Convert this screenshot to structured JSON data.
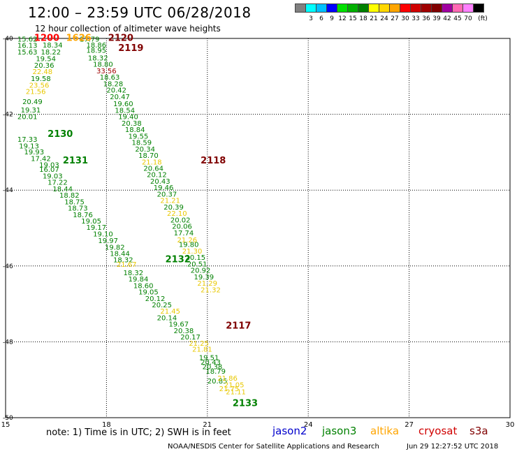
{
  "title": "12:00  –  23:59  UTC  06/28/2018",
  "subtitle": "12 hour collection of altimeter wave heights",
  "legend": {
    "unit": "(ft)",
    "colors": [
      "#808080",
      "#00ffff",
      "#00bfff",
      "#0000ff",
      "#00e000",
      "#00b000",
      "#008000",
      "#ffff00",
      "#ffd700",
      "#ffa500",
      "#ff0000",
      "#d00000",
      "#a00000",
      "#800000",
      "#a000a0",
      "#ff69b4",
      "#ff80ff",
      "#000000"
    ],
    "labels": [
      "3",
      "6",
      "9",
      "12",
      "15",
      "18",
      "21",
      "24",
      "27",
      "30",
      "33",
      "36",
      "39",
      "42",
      "45",
      "70"
    ]
  },
  "axes": {
    "x_ticks": [
      "15",
      "18",
      "21",
      "24",
      "27",
      "30"
    ],
    "y_ticks": [
      "-40",
      "-42",
      "-44",
      "-46",
      "-48",
      "-50"
    ]
  },
  "readings": [
    {
      "lon": 15.35,
      "lat": -40.08,
      "text": "15.62",
      "color": "#008000"
    },
    {
      "lon": 15.35,
      "lat": -40.25,
      "text": "16.13",
      "color": "#008000"
    },
    {
      "lon": 15.35,
      "lat": -40.42,
      "text": "15.63",
      "color": "#008000"
    },
    {
      "lon": 16.1,
      "lat": -40.24,
      "text": "18.34",
      "color": "#008000"
    },
    {
      "lon": 16.05,
      "lat": -40.42,
      "text": "18.22",
      "color": "#008000"
    },
    {
      "lon": 15.9,
      "lat": -40.6,
      "text": "19.54",
      "color": "#008000"
    },
    {
      "lon": 15.85,
      "lat": -40.77,
      "text": "20.36",
      "color": "#008000"
    },
    {
      "lon": 15.8,
      "lat": -40.94,
      "text": "22.48",
      "color": "#e8c800"
    },
    {
      "lon": 15.75,
      "lat": -41.12,
      "text": "19.58",
      "color": "#008000"
    },
    {
      "lon": 15.7,
      "lat": -41.3,
      "text": "23.56",
      "color": "#e8c800"
    },
    {
      "lon": 15.6,
      "lat": -41.46,
      "text": "21.56",
      "color": "#e8c800"
    },
    {
      "lon": 15.5,
      "lat": -41.73,
      "text": "20.49",
      "color": "#008000"
    },
    {
      "lon": 15.45,
      "lat": -41.95,
      "text": "19.31",
      "color": "#008000"
    },
    {
      "lon": 15.35,
      "lat": -42.13,
      "text": "20.01",
      "color": "#008000"
    },
    {
      "lon": 15.35,
      "lat": -42.73,
      "text": "17.33",
      "color": "#008000"
    },
    {
      "lon": 15.4,
      "lat": -42.9,
      "text": "19.13",
      "color": "#008000"
    },
    {
      "lon": 15.55,
      "lat": -43.06,
      "text": "19.93",
      "color": "#008000"
    },
    {
      "lon": 15.75,
      "lat": -43.23,
      "text": "17.42",
      "color": "#008000"
    },
    {
      "lon": 16.0,
      "lat": -43.4,
      "text": "19.03",
      "color": "#008000"
    },
    {
      "lon": 16.0,
      "lat": -43.52,
      "text": "16.07",
      "color": "#008000"
    },
    {
      "lon": 16.1,
      "lat": -43.69,
      "text": "19.03",
      "color": "#008000"
    },
    {
      "lon": 16.25,
      "lat": -43.86,
      "text": "17.22",
      "color": "#008000"
    },
    {
      "lon": 16.4,
      "lat": -44.03,
      "text": "18.44",
      "color": "#008000"
    },
    {
      "lon": 16.6,
      "lat": -44.2,
      "text": "18.82",
      "color": "#008000"
    },
    {
      "lon": 16.75,
      "lat": -44.37,
      "text": "18.75",
      "color": "#008000"
    },
    {
      "lon": 16.85,
      "lat": -44.54,
      "text": "18.73",
      "color": "#008000"
    },
    {
      "lon": 17.0,
      "lat": -44.71,
      "text": "18.76",
      "color": "#008000"
    },
    {
      "lon": 17.25,
      "lat": -44.88,
      "text": "19.05",
      "color": "#008000"
    },
    {
      "lon": 17.4,
      "lat": -45.05,
      "text": "19.17",
      "color": "#008000"
    },
    {
      "lon": 17.6,
      "lat": -45.22,
      "text": "19.10",
      "color": "#008000"
    },
    {
      "lon": 17.75,
      "lat": -45.4,
      "text": "19.97",
      "color": "#008000"
    },
    {
      "lon": 17.95,
      "lat": -45.57,
      "text": "19.82",
      "color": "#008000"
    },
    {
      "lon": 18.1,
      "lat": -45.74,
      "text": "18.44",
      "color": "#008000"
    },
    {
      "lon": 18.2,
      "lat": -45.9,
      "text": "18.32",
      "color": "#008000"
    },
    {
      "lon": 18.3,
      "lat": -46.02,
      "text": "21.67",
      "color": "#e8c800"
    },
    {
      "lon": 18.5,
      "lat": -46.24,
      "text": "18.32",
      "color": "#008000"
    },
    {
      "lon": 18.65,
      "lat": -46.41,
      "text": "19.84",
      "color": "#008000"
    },
    {
      "lon": 18.8,
      "lat": -46.58,
      "text": "18.60",
      "color": "#008000"
    },
    {
      "lon": 18.95,
      "lat": -46.75,
      "text": "19.05",
      "color": "#008000"
    },
    {
      "lon": 19.15,
      "lat": -46.92,
      "text": "20.12",
      "color": "#008000"
    },
    {
      "lon": 19.35,
      "lat": -47.09,
      "text": "20.25",
      "color": "#008000"
    },
    {
      "lon": 19.6,
      "lat": -47.26,
      "text": "21.45",
      "color": "#e8c800"
    },
    {
      "lon": 19.5,
      "lat": -47.43,
      "text": "20.14",
      "color": "#008000"
    },
    {
      "lon": 19.85,
      "lat": -47.6,
      "text": "19.67",
      "color": "#008000"
    },
    {
      "lon": 20.0,
      "lat": -47.77,
      "text": "20.38",
      "color": "#008000"
    },
    {
      "lon": 20.2,
      "lat": -47.94,
      "text": "20.17",
      "color": "#008000"
    },
    {
      "lon": 20.45,
      "lat": -48.1,
      "text": "21.25",
      "color": "#e8c800"
    },
    {
      "lon": 20.55,
      "lat": -48.26,
      "text": "21.81",
      "color": "#e8c800"
    },
    {
      "lon": 20.75,
      "lat": -48.48,
      "text": "19.51",
      "color": "#008000"
    },
    {
      "lon": 20.8,
      "lat": -48.6,
      "text": "20.43",
      "color": "#008000"
    },
    {
      "lon": 20.85,
      "lat": -48.72,
      "text": "20.38",
      "color": "#008000"
    },
    {
      "lon": 20.95,
      "lat": -48.84,
      "text": "18.79",
      "color": "#008000"
    },
    {
      "lon": 17.2,
      "lat": -40.08,
      "text": "17.79",
      "color": "#008000"
    },
    {
      "lon": 17.4,
      "lat": -40.24,
      "text": "18.86",
      "color": "#008000"
    },
    {
      "lon": 17.4,
      "lat": -40.38,
      "text": "18.95",
      "color": "#008000"
    },
    {
      "lon": 17.45,
      "lat": -40.58,
      "text": "18.32",
      "color": "#008000"
    },
    {
      "lon": 17.6,
      "lat": -40.75,
      "text": "18.80",
      "color": "#008000"
    },
    {
      "lon": 17.7,
      "lat": -40.92,
      "text": "33.56",
      "color": "#a00000"
    },
    {
      "lon": 17.8,
      "lat": -41.09,
      "text": "18.63",
      "color": "#008000"
    },
    {
      "lon": 17.9,
      "lat": -41.26,
      "text": "18.28",
      "color": "#008000"
    },
    {
      "lon": 18.0,
      "lat": -41.43,
      "text": "20.42",
      "color": "#008000"
    },
    {
      "lon": 18.1,
      "lat": -41.6,
      "text": "20.47",
      "color": "#008000"
    },
    {
      "lon": 18.2,
      "lat": -41.79,
      "text": "19.60",
      "color": "#008000"
    },
    {
      "lon": 18.25,
      "lat": -41.96,
      "text": "18.54",
      "color": "#008000"
    },
    {
      "lon": 18.35,
      "lat": -42.13,
      "text": "19.40",
      "color": "#008000"
    },
    {
      "lon": 18.45,
      "lat": -42.3,
      "text": "20.38",
      "color": "#008000"
    },
    {
      "lon": 18.55,
      "lat": -42.47,
      "text": "18.84",
      "color": "#008000"
    },
    {
      "lon": 18.65,
      "lat": -42.64,
      "text": "19.55",
      "color": "#008000"
    },
    {
      "lon": 18.75,
      "lat": -42.81,
      "text": "18.59",
      "color": "#008000"
    },
    {
      "lon": 18.85,
      "lat": -42.98,
      "text": "20.34",
      "color": "#008000"
    },
    {
      "lon": 18.95,
      "lat": -43.15,
      "text": "18.70",
      "color": "#008000"
    },
    {
      "lon": 19.05,
      "lat": -43.32,
      "text": "21.18",
      "color": "#e8c800"
    },
    {
      "lon": 19.1,
      "lat": -43.49,
      "text": "20.64",
      "color": "#008000"
    },
    {
      "lon": 19.2,
      "lat": -43.66,
      "text": "20.12",
      "color": "#008000"
    },
    {
      "lon": 19.3,
      "lat": -43.83,
      "text": "20.43",
      "color": "#008000"
    },
    {
      "lon": 19.4,
      "lat": -44.0,
      "text": "19.46",
      "color": "#008000"
    },
    {
      "lon": 19.5,
      "lat": -44.17,
      "text": "20.37",
      "color": "#008000"
    },
    {
      "lon": 19.6,
      "lat": -44.34,
      "text": "21.21",
      "color": "#e8c800"
    },
    {
      "lon": 19.7,
      "lat": -44.51,
      "text": "20.39",
      "color": "#008000"
    },
    {
      "lon": 19.8,
      "lat": -44.68,
      "text": "22.10",
      "color": "#e8c800"
    },
    {
      "lon": 19.9,
      "lat": -44.85,
      "text": "20.02",
      "color": "#008000"
    },
    {
      "lon": 19.95,
      "lat": -45.02,
      "text": "20.06",
      "color": "#008000"
    },
    {
      "lon": 20.0,
      "lat": -45.19,
      "text": "17.74",
      "color": "#008000"
    },
    {
      "lon": 20.1,
      "lat": -45.38,
      "text": "21.26",
      "color": "#e8c800"
    },
    {
      "lon": 20.15,
      "lat": -45.5,
      "text": "19.80",
      "color": "#008000"
    },
    {
      "lon": 20.25,
      "lat": -45.67,
      "text": "21.30",
      "color": "#e8c800"
    },
    {
      "lon": 20.35,
      "lat": -45.84,
      "text": "20.15",
      "color": "#008000"
    },
    {
      "lon": 20.4,
      "lat": -46.01,
      "text": "20.51",
      "color": "#008000"
    },
    {
      "lon": 20.5,
      "lat": -46.18,
      "text": "20.92",
      "color": "#008000"
    },
    {
      "lon": 20.6,
      "lat": -46.35,
      "text": "19.39",
      "color": "#008000"
    },
    {
      "lon": 20.7,
      "lat": -46.52,
      "text": "21.29",
      "color": "#e8c800"
    },
    {
      "lon": 20.8,
      "lat": -46.69,
      "text": "21.32",
      "color": "#e8c800"
    },
    {
      "lon": 21.0,
      "lat": -49.1,
      "text": "20.85",
      "color": "#008000"
    },
    {
      "lon": 21.3,
      "lat": -49.02,
      "text": "21.86",
      "color": "#e8c800"
    },
    {
      "lon": 21.5,
      "lat": -49.2,
      "text": "21.05",
      "color": "#e8c800"
    },
    {
      "lon": 21.35,
      "lat": -49.3,
      "text": "21.75",
      "color": "#e8c800"
    },
    {
      "lon": 21.55,
      "lat": -49.38,
      "text": "21.11",
      "color": "#e8c800"
    }
  ],
  "passes": [
    {
      "lon": 15.85,
      "lat": -40.06,
      "text": "1200",
      "color": "#ff0000"
    },
    {
      "lon": 16.8,
      "lat": -40.06,
      "text": "1626",
      "color": "#ffa500"
    },
    {
      "lon": 18.05,
      "lat": -40.06,
      "text": "2120",
      "color": "#800000"
    },
    {
      "lon": 18.35,
      "lat": -40.33,
      "text": "2119",
      "color": "#800000"
    },
    {
      "lon": 16.25,
      "lat": -42.6,
      "text": "2130",
      "color": "#008000"
    },
    {
      "lon": 16.7,
      "lat": -43.3,
      "text": "2131",
      "color": "#008000"
    },
    {
      "lon": 20.8,
      "lat": -43.3,
      "text": "2118",
      "color": "#800000"
    },
    {
      "lon": 19.75,
      "lat": -45.9,
      "text": "2132",
      "color": "#008000"
    },
    {
      "lon": 21.55,
      "lat": -47.65,
      "text": "2117",
      "color": "#800000"
    },
    {
      "lon": 21.75,
      "lat": -49.7,
      "text": "2133",
      "color": "#008000"
    }
  ],
  "note": "note:  1) Time is in UTC;  2) SWH is in feet",
  "satellites": [
    {
      "name": "jason2",
      "color": "#0000cc"
    },
    {
      "name": "jason3",
      "color": "#008000"
    },
    {
      "name": "altika",
      "color": "#ffa500"
    },
    {
      "name": "cryosat",
      "color": "#d00000"
    },
    {
      "name": "s3a",
      "color": "#800000"
    }
  ],
  "credit": "NOAA/NESDIS Center for Satellite Applications and Research",
  "timestamp": "Jun 29 12:27:52 UTC 2018"
}
